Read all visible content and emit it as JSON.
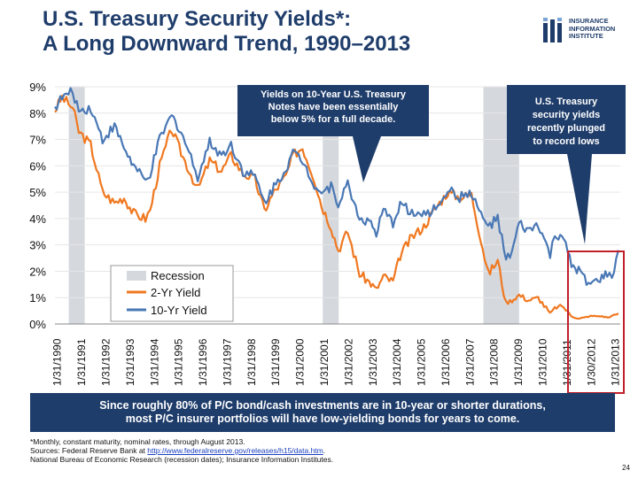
{
  "title": {
    "line1": "U.S. Treasury Security Yields*:",
    "line2": "A Long Downward Trend, 1990–2013"
  },
  "logo": {
    "line1": "INSURANCE",
    "line2": "INFORMATION",
    "line3": "INSTITUTE"
  },
  "callouts": {
    "left_line1": "Yields on 10-Year U.S. Treasury",
    "left_line2": "Notes have been essentially",
    "left_line3": "below 5% for a full decade.",
    "right_line1": "U.S. Treasury",
    "right_line2": "security yields",
    "right_line3": "recently plunged",
    "right_line4": "to record lows"
  },
  "banner": {
    "line1": "Since roughly 80% of P/C bond/cash investments are in 10-year or shorter durations,",
    "line2": "most P/C insurer portfolios will have low-yielding bonds for years to come."
  },
  "footnote": {
    "line1": "*Monthly, constant maturity, nominal rates, through August 2013.",
    "line2_prefix": "Sources: Federal Reserve Bank at ",
    "line2_link": "http://www.federalreserve.gov/releases/h15/data.htm",
    "line2_suffix": ".",
    "line3": "National Bureau of Economic Research (recession dates); Insurance Information Institutes."
  },
  "page_number": "24",
  "colors": {
    "navy": "#1f3d6b",
    "recession": "#d5d9de",
    "yield2": "#f07820",
    "yield10": "#4a78b5",
    "highlight": "#c0202a"
  },
  "chart_data": {
    "type": "line",
    "title": "U.S. Treasury Security Yields*: A Long Downward Trend, 1990–2013",
    "xlabel": "",
    "ylabel": "",
    "ylim": [
      0,
      9
    ],
    "y_ticks": [
      "0%",
      "1%",
      "2%",
      "3%",
      "4%",
      "5%",
      "6%",
      "7%",
      "8%",
      "9%"
    ],
    "x_tick_labels": [
      "1/31/1990",
      "1/31/1991",
      "1/31/1992",
      "1/31/1993",
      "1/31/1994",
      "1/31/1995",
      "1/31/1996",
      "1/31/1997",
      "1/31/1998",
      "1/31/1999",
      "1/31/2000",
      "1/31/2001",
      "1/31/2002",
      "1/31/2003",
      "1/31/2004",
      "1/31/2005",
      "1/31/2006",
      "1/31/2007",
      "1/31/2008",
      "1/31/2009",
      "1/31/2010",
      "1/31/2011",
      "1/30/2012",
      "1/31/2013"
    ],
    "legend": [
      "Recession",
      "2-Yr Yield",
      "10-Yr Yield"
    ],
    "legend_position": "bottom-left",
    "recessions": [
      [
        1990.58,
        1991.25
      ],
      [
        2001.25,
        2001.92
      ],
      [
        2008.0,
        2009.5
      ]
    ],
    "series": [
      {
        "name": "10-Yr Yield",
        "x": [
          1990.0,
          1990.3,
          1990.75,
          1991.0,
          1991.5,
          1992.0,
          1992.5,
          1992.9,
          1993.3,
          1993.8,
          1994.0,
          1994.4,
          1994.9,
          1995.3,
          1995.8,
          1996.0,
          1996.5,
          1997.0,
          1997.4,
          1997.9,
          1998.4,
          1998.8,
          1999.2,
          1999.7,
          2000.0,
          2000.4,
          2000.9,
          2001.2,
          2001.6,
          2001.9,
          2002.3,
          2002.8,
          2003.2,
          2003.5,
          2003.8,
          2004.2,
          2004.5,
          2005.0,
          2005.5,
          2006.0,
          2006.5,
          2007.0,
          2007.5,
          2007.9,
          2008.2,
          2008.6,
          2008.95,
          2009.2,
          2009.5,
          2009.9,
          2010.3,
          2010.8,
          2011.0,
          2011.3,
          2011.7,
          2012.0,
          2012.5,
          2012.9,
          2013.2,
          2013.4,
          2013.67
        ],
        "values": [
          8.2,
          8.6,
          8.8,
          8.1,
          8.2,
          7.0,
          7.5,
          6.7,
          6.0,
          5.4,
          5.7,
          7.0,
          7.9,
          7.3,
          6.1,
          5.6,
          6.9,
          6.4,
          6.8,
          5.8,
          5.6,
          4.6,
          5.2,
          5.9,
          6.5,
          6.2,
          5.3,
          5.0,
          5.2,
          4.6,
          5.3,
          4.0,
          3.9,
          3.4,
          4.3,
          3.8,
          4.6,
          4.2,
          4.1,
          4.4,
          5.1,
          4.8,
          5.0,
          4.1,
          3.7,
          4.0,
          2.4,
          2.7,
          3.8,
          3.5,
          3.8,
          2.6,
          3.3,
          3.4,
          2.2,
          2.0,
          1.5,
          1.7,
          1.9,
          1.7,
          2.8
        ]
      },
      {
        "name": "2-Yr Yield",
        "x": [
          1990.0,
          1990.3,
          1990.75,
          1991.0,
          1991.5,
          1992.0,
          1992.5,
          1992.9,
          1993.3,
          1993.8,
          1994.0,
          1994.4,
          1994.9,
          1995.3,
          1995.8,
          1996.0,
          1996.5,
          1997.0,
          1997.4,
          1997.9,
          1998.4,
          1998.8,
          1999.2,
          1999.7,
          2000.0,
          2000.4,
          2000.9,
          2001.2,
          2001.6,
          2001.9,
          2002.3,
          2002.8,
          2003.2,
          2003.5,
          2003.8,
          2004.2,
          2004.5,
          2005.0,
          2005.5,
          2006.0,
          2006.5,
          2007.0,
          2007.5,
          2007.9,
          2008.2,
          2008.6,
          2008.95,
          2009.2,
          2009.5,
          2009.9,
          2010.3,
          2010.8,
          2011.0,
          2011.3,
          2011.7,
          2012.0,
          2012.5,
          2012.9,
          2013.2,
          2013.4,
          2013.67
        ],
        "values": [
          8.1,
          8.6,
          8.2,
          7.3,
          6.8,
          5.0,
          4.6,
          4.8,
          4.2,
          4.0,
          4.3,
          6.0,
          7.4,
          6.5,
          5.5,
          5.1,
          6.2,
          5.8,
          6.4,
          5.7,
          5.5,
          4.3,
          5.0,
          5.6,
          6.4,
          6.7,
          5.5,
          4.5,
          3.7,
          2.8,
          3.5,
          1.9,
          1.6,
          1.3,
          1.8,
          1.6,
          2.6,
          3.3,
          3.7,
          4.4,
          5.0,
          4.8,
          4.9,
          3.2,
          1.9,
          2.4,
          0.8,
          0.9,
          1.1,
          0.9,
          1.0,
          0.4,
          0.6,
          0.7,
          0.3,
          0.2,
          0.3,
          0.3,
          0.25,
          0.3,
          0.4
        ]
      }
    ]
  }
}
